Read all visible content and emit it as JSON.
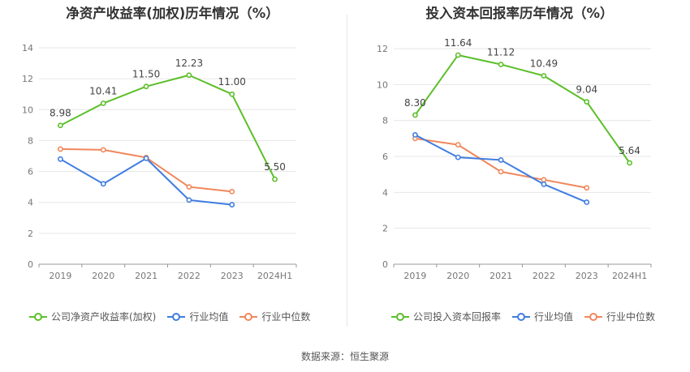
{
  "footer": {
    "source": "数据来源：恒生聚源"
  },
  "chart_data": [
    {
      "type": "line",
      "title": "净资产收益率(加权)历年情况（%）",
      "categories": [
        "2019",
        "2020",
        "2021",
        "2022",
        "2023",
        "2024H1"
      ],
      "yticks": [
        "0",
        "2",
        "4",
        "6",
        "8",
        "10",
        "12",
        "14"
      ],
      "ylim": [
        0,
        14
      ],
      "grid": true,
      "legend_position": "bottom",
      "series": [
        {
          "name": "公司净资产收益率(加权)",
          "color": "#5cbf2a",
          "values": [
            8.98,
            10.41,
            11.5,
            12.23,
            11.0,
            5.5
          ],
          "labels": [
            "8.98",
            "10.41",
            "11.50",
            "12.23",
            "11.00",
            "5.50"
          ]
        },
        {
          "name": "行业均值",
          "color": "#3f7de0",
          "values": [
            6.8,
            5.2,
            6.85,
            4.15,
            3.85,
            null
          ]
        },
        {
          "name": "行业中位数",
          "color": "#f0875c",
          "values": [
            7.45,
            7.4,
            6.9,
            5.0,
            4.7,
            null
          ]
        }
      ]
    },
    {
      "type": "line",
      "title": "投入资本回报率历年情况（%）",
      "categories": [
        "2019",
        "2020",
        "2021",
        "2022",
        "2023",
        "2024H1"
      ],
      "yticks": [
        "0",
        "2",
        "4",
        "6",
        "8",
        "10",
        "12"
      ],
      "ylim": [
        0,
        12
      ],
      "grid": true,
      "legend_position": "bottom",
      "series": [
        {
          "name": "公司投入资本回报率",
          "color": "#5cbf2a",
          "values": [
            8.3,
            11.64,
            11.12,
            10.49,
            9.04,
            5.64
          ],
          "labels": [
            "8.30",
            "11.64",
            "11.12",
            "10.49",
            "9.04",
            "5.64"
          ]
        },
        {
          "name": "行业均值",
          "color": "#3f7de0",
          "values": [
            7.2,
            5.95,
            5.8,
            4.45,
            3.45,
            null
          ]
        },
        {
          "name": "行业中位数",
          "color": "#f0875c",
          "values": [
            7.0,
            6.65,
            5.15,
            4.7,
            4.25,
            null
          ]
        }
      ]
    }
  ]
}
